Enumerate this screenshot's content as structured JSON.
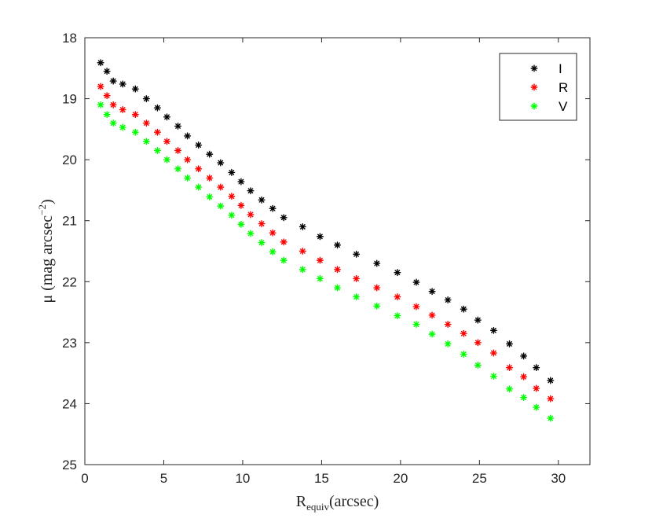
{
  "chart_data": {
    "type": "scatter",
    "title": "",
    "xlabel": {
      "main": "R",
      "subscript": "equiv",
      "rest": "(arcsec)"
    },
    "ylabel": {
      "main": "μ (mag arcsec",
      "superscript": "−2",
      "rest": ")"
    },
    "xlim": [
      0,
      32
    ],
    "ylim": [
      18,
      25
    ],
    "y_reversed": true,
    "xticks": [
      0,
      5,
      10,
      15,
      20,
      25,
      30
    ],
    "xtick_labels": [
      "0",
      "5",
      "10",
      "15",
      "20",
      "25",
      "30"
    ],
    "yticks": [
      18,
      19,
      20,
      21,
      22,
      23,
      24,
      25
    ],
    "ytick_labels": [
      "18",
      "19",
      "20",
      "21",
      "22",
      "23",
      "24",
      "25"
    ],
    "grid": false,
    "legend_position": "top-right",
    "marker": "asterisk",
    "series": [
      {
        "name": "I",
        "color": "#000000",
        "x": [
          1.0,
          1.4,
          1.8,
          2.4,
          3.2,
          3.9,
          4.6,
          5.2,
          5.9,
          6.5,
          7.2,
          7.9,
          8.6,
          9.3,
          9.9,
          10.5,
          11.2,
          11.9,
          12.6,
          13.8,
          14.9,
          16.0,
          17.2,
          18.5,
          19.8,
          21.0,
          22.0,
          23.0,
          24.0,
          24.9,
          25.9,
          26.9,
          27.8,
          28.6,
          29.5
        ],
        "y": [
          18.41,
          18.55,
          18.71,
          18.76,
          18.84,
          19.0,
          19.15,
          19.3,
          19.45,
          19.61,
          19.76,
          19.91,
          20.05,
          20.21,
          20.36,
          20.51,
          20.66,
          20.8,
          20.95,
          21.1,
          21.26,
          21.4,
          21.55,
          21.7,
          21.85,
          22.01,
          22.16,
          22.3,
          22.45,
          22.63,
          22.8,
          23.02,
          23.22,
          23.41,
          23.62
        ]
      },
      {
        "name": "R",
        "color": "#ff0000",
        "x": [
          1.0,
          1.4,
          1.8,
          2.4,
          3.2,
          3.9,
          4.6,
          5.2,
          5.9,
          6.5,
          7.2,
          7.9,
          8.6,
          9.3,
          9.9,
          10.5,
          11.2,
          11.9,
          12.6,
          13.8,
          14.9,
          16.0,
          17.2,
          18.5,
          19.8,
          21.0,
          22.0,
          23.0,
          24.0,
          24.9,
          25.9,
          26.9,
          27.8,
          28.6,
          29.5
        ],
        "y": [
          18.8,
          18.95,
          19.1,
          19.18,
          19.26,
          19.4,
          19.55,
          19.7,
          19.85,
          20.0,
          20.15,
          20.3,
          20.45,
          20.6,
          20.75,
          20.9,
          21.05,
          21.2,
          21.35,
          21.5,
          21.65,
          21.8,
          21.95,
          22.1,
          22.25,
          22.41,
          22.55,
          22.7,
          22.85,
          23.0,
          23.17,
          23.41,
          23.56,
          23.75,
          23.92
        ]
      },
      {
        "name": "V",
        "color": "#00ff00",
        "x": [
          1.0,
          1.4,
          1.8,
          2.4,
          3.2,
          3.9,
          4.6,
          5.2,
          5.9,
          6.5,
          7.2,
          7.9,
          8.6,
          9.3,
          9.9,
          10.5,
          11.2,
          11.9,
          12.6,
          13.8,
          14.9,
          16.0,
          17.2,
          18.5,
          19.8,
          21.0,
          22.0,
          23.0,
          24.0,
          24.9,
          25.9,
          26.9,
          27.8,
          28.6,
          29.5
        ],
        "y": [
          19.1,
          19.26,
          19.4,
          19.47,
          19.55,
          19.7,
          19.85,
          20.0,
          20.15,
          20.3,
          20.45,
          20.61,
          20.76,
          20.91,
          21.06,
          21.21,
          21.36,
          21.51,
          21.65,
          21.8,
          21.95,
          22.1,
          22.25,
          22.4,
          22.56,
          22.7,
          22.86,
          23.02,
          23.19,
          23.37,
          23.55,
          23.76,
          23.9,
          24.06,
          24.24
        ]
      }
    ]
  }
}
